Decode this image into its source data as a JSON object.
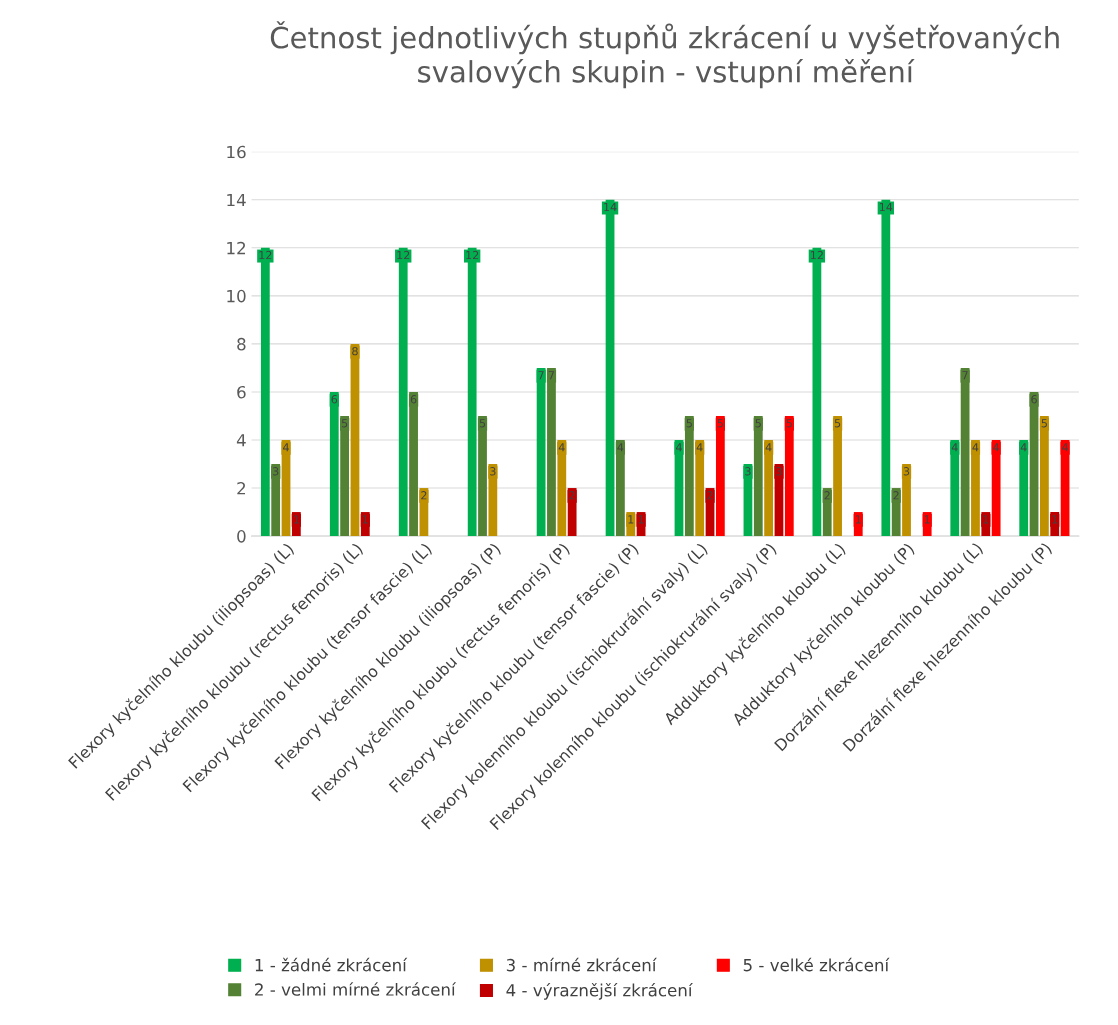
{
  "chart_data": {
    "type": "bar",
    "title": "Četnost jednotlivých stupňů zkrácení u vyšetřovaných\nsvalových skupin - vstupní měření",
    "categories": [
      "Flexory kyčelního kloubu (iliopsoas) (L)",
      "Flexory kyčelního kloubu (rectus femoris) (L)",
      "Flexory kyčelního kloubu (tensor fascie) (L)",
      "Flexory kyčelního kloubu (iliopsoas) (P)",
      "Flexory kyčelního kloubu (rectus femoris) (P)",
      "Flexory kyčelního kloubu (tensor fascie) (P)",
      "Flexory kolenního kloubu (ischiokrurální svaly) (L)",
      "Flexory kolenního kloubu (ischiokrurální svaly) (P)",
      "Adduktory kyčelního kloubu (L)",
      "Adduktory kyčelního kloubu (P)",
      "Dorzální flexe hlezenního kloubu (L)",
      "Dorzální flexe hlezenního kloubu (P)"
    ],
    "series": [
      {
        "name": "1 - žádné zkrácení",
        "color": "#00b050",
        "values": [
          12,
          6,
          12,
          12,
          7,
          14,
          4,
          3,
          12,
          14,
          4,
          4
        ]
      },
      {
        "name": "2 - velmi mírné zkrácení",
        "color": "#548235",
        "values": [
          3,
          5,
          6,
          5,
          7,
          4,
          5,
          5,
          2,
          2,
          7,
          6
        ]
      },
      {
        "name": "3 - mírné zkrácení",
        "color": "#bf9000",
        "values": [
          4,
          8,
          2,
          3,
          4,
          1,
          4,
          4,
          5,
          3,
          4,
          5
        ]
      },
      {
        "name": "4 - výraznější zkrácení",
        "color": "#c00000",
        "values": [
          1,
          1,
          null,
          null,
          2,
          1,
          2,
          3,
          null,
          null,
          1,
          1
        ]
      },
      {
        "name": "5 - velké zkrácení",
        "color": "#ff0000",
        "values": [
          null,
          null,
          null,
          null,
          null,
          null,
          5,
          5,
          1,
          1,
          4,
          4
        ]
      }
    ],
    "ylim": [
      0,
      16
    ],
    "yticks": [
      0,
      2,
      4,
      6,
      8,
      10,
      12,
      14,
      16
    ],
    "grid": "y",
    "legend": "bottom",
    "data_labels": true
  }
}
